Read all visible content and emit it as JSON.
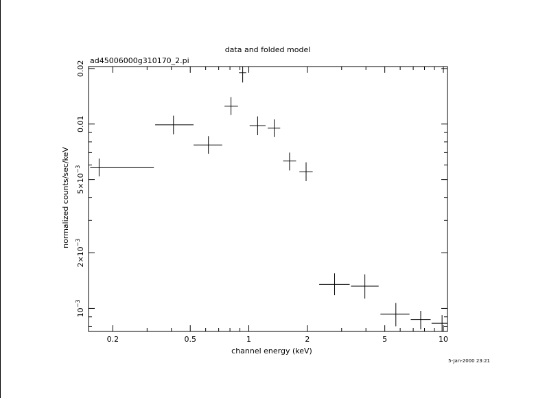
{
  "chart_data": {
    "type": "scatter",
    "title": "data and folded model",
    "subtitle": "ad45006000g310170_2.pi",
    "xlabel": "channel energy (keV)",
    "ylabel": "normalized counts/sec/keV",
    "timestamp": "5-Jan-2000 23:21",
    "x_scale": "log",
    "y_scale": "log",
    "xlim": [
      0.15,
      10.5
    ],
    "ylim": [
      0.00075,
      0.0205
    ],
    "x_ticks": [
      {
        "value": 0.2,
        "label": "0.2"
      },
      {
        "value": 0.5,
        "label": "0.5"
      },
      {
        "value": 1,
        "label": "1"
      },
      {
        "value": 2,
        "label": "2"
      },
      {
        "value": 5,
        "label": "5"
      },
      {
        "value": 10,
        "label": "10"
      }
    ],
    "y_ticks": [
      {
        "value": 0.001,
        "label": "10",
        "sup": "−3"
      },
      {
        "value": 0.002,
        "label": "2×10",
        "sup": "−3"
      },
      {
        "value": 0.005,
        "label": "5×10",
        "sup": "−3"
      },
      {
        "value": 0.01,
        "label": "0.01",
        "sup": ""
      },
      {
        "value": 0.02,
        "label": "0.02",
        "sup": ""
      }
    ],
    "points": [
      {
        "x": 0.17,
        "xlo": 0.153,
        "xhi": 0.325,
        "y": 0.0058,
        "ylo": 0.0052,
        "yhi": 0.0065
      },
      {
        "x": 0.41,
        "xlo": 0.33,
        "xhi": 0.52,
        "y": 0.0099,
        "ylo": 0.0088,
        "yhi": 0.0111
      },
      {
        "x": 0.62,
        "xlo": 0.52,
        "xhi": 0.73,
        "y": 0.0077,
        "ylo": 0.0069,
        "yhi": 0.0086
      },
      {
        "x": 0.81,
        "xlo": 0.75,
        "xhi": 0.88,
        "y": 0.0125,
        "ylo": 0.0112,
        "yhi": 0.014
      },
      {
        "x": 0.93,
        "xlo": 0.89,
        "xhi": 0.97,
        "y": 0.019,
        "ylo": 0.0168,
        "yhi": 0.0212
      },
      {
        "x": 1.11,
        "xlo": 1.01,
        "xhi": 1.22,
        "y": 0.0098,
        "ylo": 0.0087,
        "yhi": 0.011
      },
      {
        "x": 1.35,
        "xlo": 1.25,
        "xhi": 1.45,
        "y": 0.0095,
        "ylo": 0.0085,
        "yhi": 0.0106
      },
      {
        "x": 1.62,
        "xlo": 1.5,
        "xhi": 1.75,
        "y": 0.0063,
        "ylo": 0.0056,
        "yhi": 0.007
      },
      {
        "x": 1.97,
        "xlo": 1.82,
        "xhi": 2.13,
        "y": 0.0055,
        "ylo": 0.0049,
        "yhi": 0.0062
      },
      {
        "x": 2.76,
        "xlo": 2.3,
        "xhi": 3.3,
        "y": 0.00135,
        "ylo": 0.00118,
        "yhi": 0.00155
      },
      {
        "x": 3.95,
        "xlo": 3.35,
        "xhi": 4.65,
        "y": 0.00132,
        "ylo": 0.00113,
        "yhi": 0.00153
      },
      {
        "x": 5.7,
        "xlo": 4.75,
        "xhi": 6.7,
        "y": 0.00093,
        "ylo": 0.0008,
        "yhi": 0.00107
      },
      {
        "x": 7.65,
        "xlo": 6.8,
        "xhi": 8.6,
        "y": 0.00087,
        "ylo": 0.00077,
        "yhi": 0.00097
      },
      {
        "x": 9.85,
        "xlo": 8.7,
        "xhi": 10.5,
        "y": 0.00083,
        "ylo": 0.00075,
        "yhi": 0.00092
      }
    ]
  }
}
